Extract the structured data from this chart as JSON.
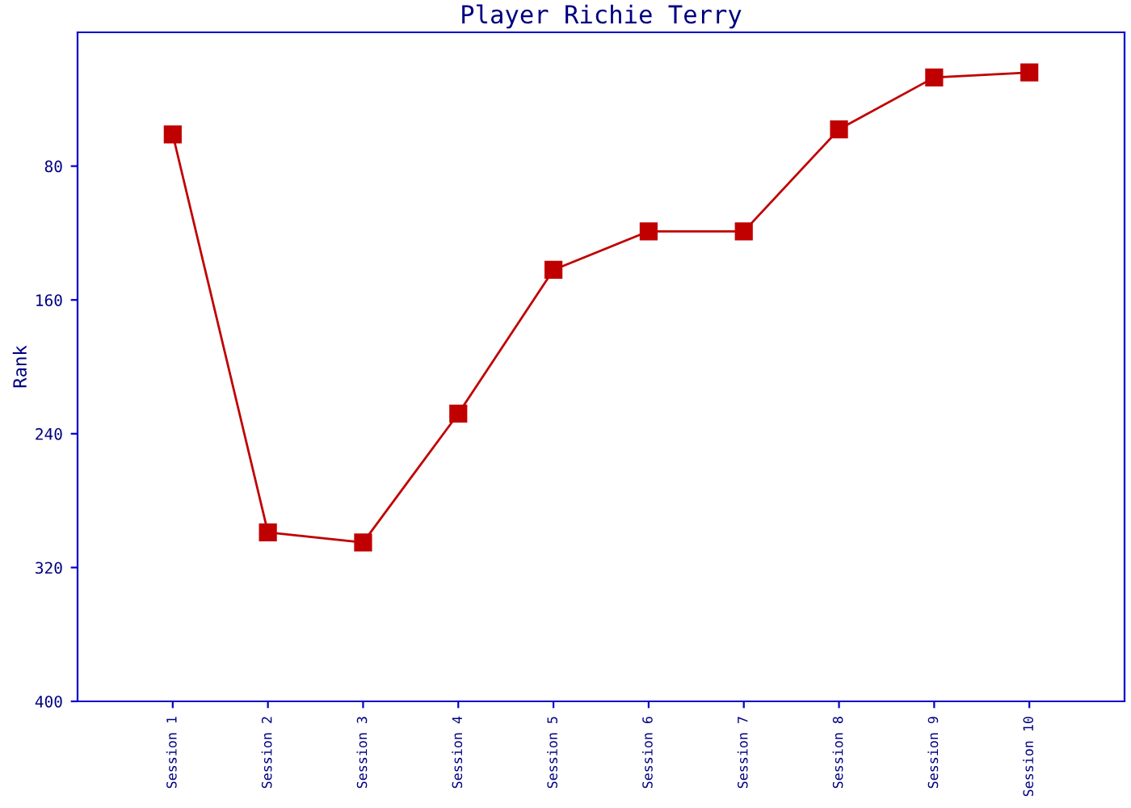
{
  "chart_data": {
    "type": "line",
    "title": "Player Richie Terry",
    "ylabel": "Rank",
    "categories": [
      "Session 1",
      "Session 2",
      "Session 3",
      "Session 4",
      "Session 5",
      "Session 6",
      "Session 7",
      "Session 8",
      "Session 9",
      "Session 10"
    ],
    "series": [
      {
        "color": "#c00000",
        "values": [
          61,
          299,
          305,
          228,
          142,
          119,
          119,
          58,
          27,
          24
        ]
      }
    ],
    "ylim": [
      400,
      0
    ],
    "yticks": [
      80,
      160,
      240,
      320,
      400
    ],
    "grid": false,
    "legend": false,
    "marker": "square",
    "line_style": "solid"
  }
}
